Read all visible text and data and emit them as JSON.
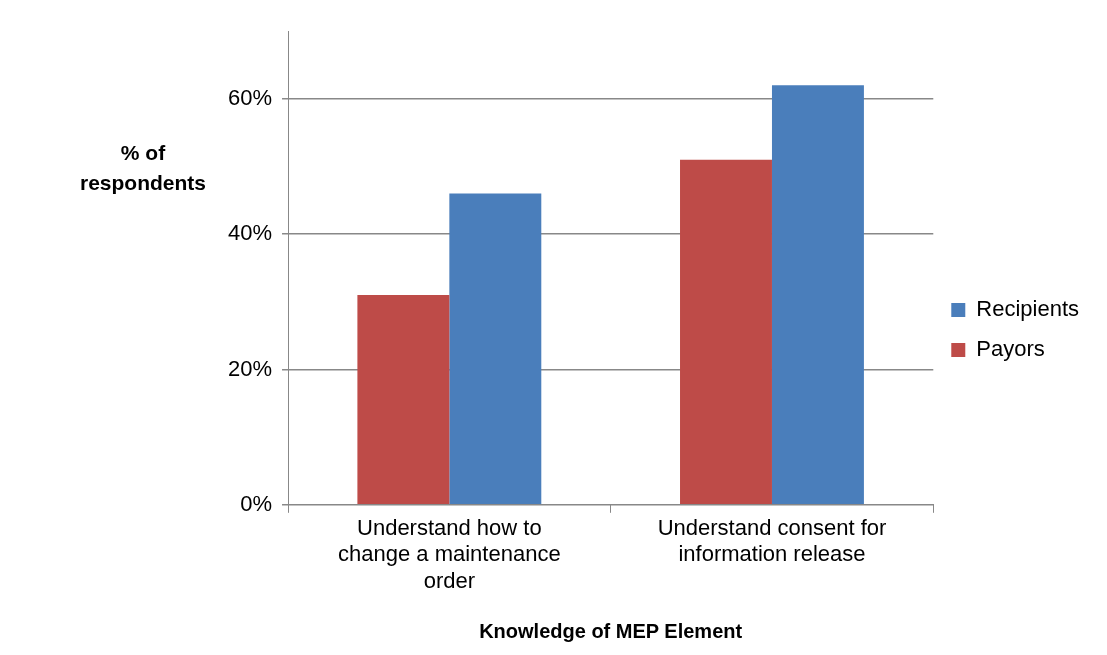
{
  "chart_data": {
    "type": "bar",
    "xlabel": "Knowledge of MEP Element",
    "ylabel": "% of respondents",
    "categories": [
      "Understand how to change a maintenance order",
      "Understand consent for information release"
    ],
    "series": [
      {
        "name": "Payors",
        "color": "#be4b48",
        "values": [
          31,
          51
        ]
      },
      {
        "name": "Recipients",
        "color": "#4a7ebb",
        "values": [
          46,
          62
        ]
      }
    ],
    "ylim": [
      0,
      70
    ],
    "yticks": [
      {
        "value": 0,
        "label": "0%"
      },
      {
        "value": 20,
        "label": "20%"
      },
      {
        "value": 40,
        "label": "40%"
      },
      {
        "value": 60,
        "label": "60%"
      }
    ],
    "grid": "y",
    "legend": "right"
  }
}
